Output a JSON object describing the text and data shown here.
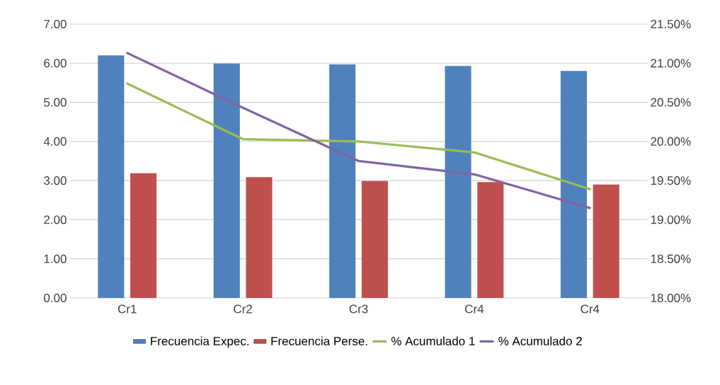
{
  "chart_data": {
    "type": "bar",
    "categories": [
      "Cr1",
      "Cr2",
      "Cr3",
      "Cr4",
      "Cr4"
    ],
    "series": [
      {
        "name": "Frecuencia Expec.",
        "color": "#4f81bd",
        "values": [
          6.2,
          5.99,
          5.97,
          5.93,
          5.8
        ]
      },
      {
        "name": "Frecuencia Perse.",
        "color": "#c0504d",
        "values": [
          3.19,
          3.09,
          2.99,
          2.96,
          2.9
        ]
      },
      {
        "name": "% Acumulado 1",
        "type": "line",
        "axis": "y2",
        "color": "#9bbb59",
        "values": [
          20.74,
          20.03,
          20.0,
          19.86,
          19.39
        ]
      },
      {
        "name": "% Acumulado 2",
        "type": "line",
        "axis": "y2",
        "color": "#8064a2",
        "values": [
          21.13,
          20.43,
          19.75,
          19.58,
          19.15
        ]
      }
    ],
    "ylim": [
      0,
      7
    ],
    "yticks": [
      {
        "value": 0,
        "label": "0.00"
      },
      {
        "value": 1,
        "label": "1.00"
      },
      {
        "value": 2,
        "label": "2.00"
      },
      {
        "value": 3,
        "label": "3.00"
      },
      {
        "value": 4,
        "label": "4.00"
      },
      {
        "value": 5,
        "label": "5.00"
      },
      {
        "value": 6,
        "label": "6.00"
      },
      {
        "value": 7,
        "label": "7.00"
      }
    ],
    "y2lim": [
      18,
      21.5
    ],
    "y2ticks": [
      {
        "value": 18,
        "label": "18.00%"
      },
      {
        "value": 18.5,
        "label": "18.50%"
      },
      {
        "value": 19,
        "label": "19.00%"
      },
      {
        "value": 19.5,
        "label": "19.50%"
      },
      {
        "value": 20,
        "label": "20.00%"
      },
      {
        "value": 20.5,
        "label": "20.50%"
      },
      {
        "value": 21,
        "label": "21.00%"
      },
      {
        "value": 21.5,
        "label": "21.50%"
      }
    ],
    "grid": "y",
    "legend": "bottom"
  }
}
